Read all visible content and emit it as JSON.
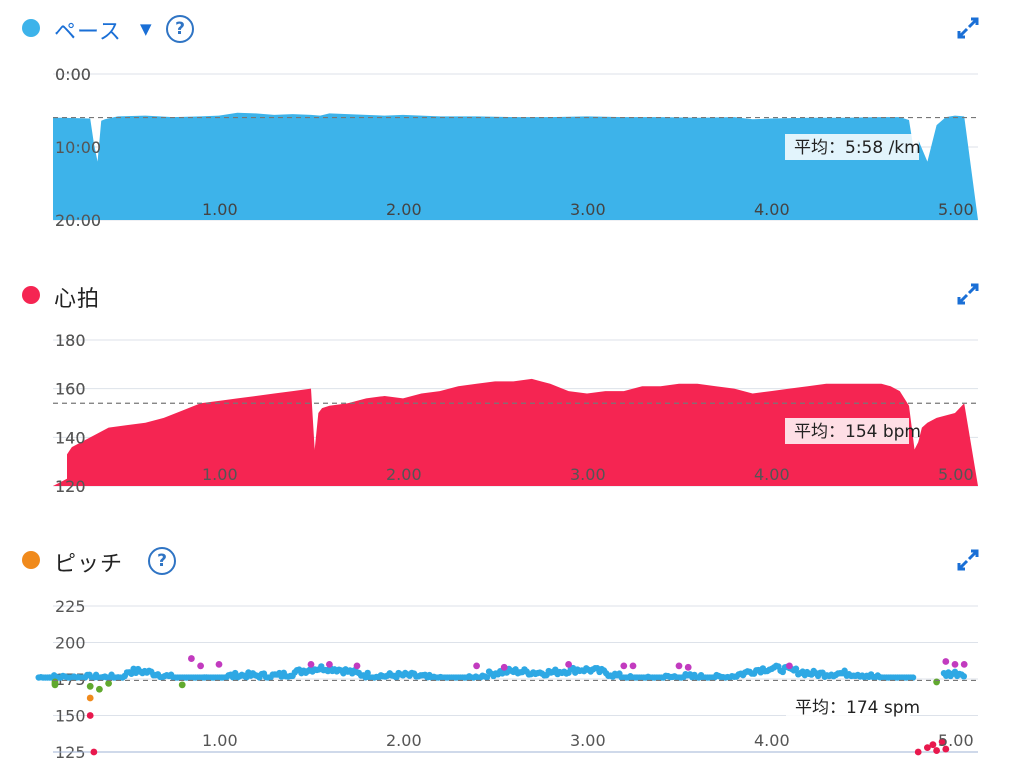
{
  "colors": {
    "pace": "#3db3ea",
    "heart": "#f52552",
    "pitch_legend": "#f08a1c",
    "pitch_blue": "#2ea8e4",
    "pitch_purple": "#c23bbf",
    "pitch_green": "#61a92e",
    "pitch_red": "#e8184d",
    "help": "#2f74c4"
  },
  "pace": {
    "title": "ペース",
    "dropdown_icon": "triangle-down-icon",
    "help_label": "?",
    "avg_label": "平均：5:58 /km",
    "expand_icon": "expand-icon"
  },
  "heart": {
    "title": "心拍",
    "avg_label": "平均：154 bpm",
    "expand_icon": "expand-icon"
  },
  "pitch": {
    "title": "ピッチ",
    "help_label": "?",
    "avg_label": "平均：174 spm",
    "expand_icon": "expand-icon"
  },
  "chart_data": [
    {
      "type": "area",
      "title": "ペース",
      "y_ticks": [
        "0:00",
        "10:00",
        "20:00"
      ],
      "x_ticks": [
        "1.00",
        "2.00",
        "3.00",
        "4.00",
        "5.00"
      ],
      "ylim_min_per_km": [
        0,
        20
      ],
      "y_inverted": true,
      "avg": 5.97,
      "x": [
        0.0,
        0.15,
        0.3,
        0.32,
        0.34,
        0.36,
        0.38,
        0.45,
        0.6,
        0.75,
        0.9,
        1.0,
        1.1,
        1.2,
        1.3,
        1.4,
        1.5,
        1.55,
        1.6,
        1.7,
        1.8,
        1.9,
        2.0,
        2.2,
        2.4,
        2.6,
        2.8,
        3.0,
        3.2,
        3.4,
        3.6,
        3.8,
        3.9,
        4.0,
        4.2,
        4.4,
        4.6,
        4.7,
        4.75,
        4.78,
        4.8,
        4.85,
        4.9,
        4.95,
        5.0,
        5.05
      ],
      "series": [
        {
          "name": "ペース",
          "values": [
            6.0,
            6.0,
            6.1,
            9.5,
            12.0,
            6.4,
            6.2,
            5.8,
            5.7,
            5.9,
            5.8,
            5.7,
            5.3,
            5.4,
            5.6,
            5.5,
            5.6,
            5.7,
            5.4,
            5.5,
            5.6,
            5.7,
            5.6,
            5.8,
            5.8,
            5.9,
            5.9,
            5.8,
            5.9,
            5.9,
            6.0,
            5.9,
            6.2,
            6.1,
            6.0,
            6.0,
            5.9,
            5.9,
            6.3,
            11.0,
            9.0,
            12.0,
            7.0,
            5.9,
            5.7,
            5.8
          ]
        }
      ]
    },
    {
      "type": "area",
      "title": "心拍",
      "y_ticks": [
        "120",
        "140",
        "160",
        "180"
      ],
      "x_ticks": [
        "1.00",
        "2.00",
        "3.00",
        "4.00",
        "5.00"
      ],
      "ylim": [
        120,
        180
      ],
      "avg": 154,
      "x": [
        0.0,
        0.05,
        0.1,
        0.15,
        0.2,
        0.25,
        0.3,
        0.35,
        0.4,
        0.5,
        0.6,
        0.7,
        0.8,
        0.9,
        1.0,
        1.1,
        1.2,
        1.3,
        1.4,
        1.5,
        1.52,
        1.54,
        1.56,
        1.6,
        1.7,
        1.8,
        1.9,
        2.0,
        2.1,
        2.2,
        2.3,
        2.4,
        2.5,
        2.6,
        2.7,
        2.8,
        2.9,
        3.0,
        3.1,
        3.2,
        3.3,
        3.4,
        3.5,
        3.6,
        3.7,
        3.8,
        3.9,
        4.0,
        4.1,
        4.2,
        4.3,
        4.4,
        4.5,
        4.6,
        4.65,
        4.7,
        4.75,
        4.78,
        4.8,
        4.82,
        4.85,
        4.9,
        5.0,
        5.05
      ],
      "series": [
        {
          "name": "心拍",
          "values": [
            123,
            127,
            130,
            133,
            136,
            138,
            140,
            142,
            144,
            145,
            146,
            148,
            151,
            154,
            155,
            156,
            157,
            158,
            159,
            160,
            135,
            150,
            152,
            153,
            154,
            156,
            157,
            156,
            158,
            159,
            161,
            162,
            163,
            163,
            164,
            162,
            159,
            158,
            159,
            159,
            161,
            161,
            162,
            162,
            161,
            160,
            158,
            159,
            160,
            161,
            162,
            162,
            162,
            162,
            161,
            159,
            153,
            135,
            138,
            144,
            146,
            148,
            150,
            154
          ]
        }
      ]
    },
    {
      "type": "scatter",
      "title": "ピッチ",
      "y_ticks": [
        "125",
        "150",
        "175",
        "200",
        "225"
      ],
      "x_ticks": [
        "1.00",
        "2.00",
        "3.00",
        "4.00",
        "5.00"
      ],
      "ylim": [
        125,
        225
      ],
      "avg": 174,
      "series": [
        {
          "name": "blue",
          "values_range": [
            176,
            184
          ]
        },
        {
          "name": "purple",
          "points": [
            [
              0.85,
              189
            ],
            [
              0.9,
              184
            ],
            [
              1.0,
              185
            ],
            [
              1.5,
              185
            ],
            [
              1.6,
              185
            ],
            [
              1.75,
              184
            ],
            [
              2.4,
              184
            ],
            [
              2.55,
              183
            ],
            [
              2.9,
              185
            ],
            [
              3.2,
              184
            ],
            [
              3.25,
              184
            ],
            [
              3.5,
              184
            ],
            [
              3.55,
              183
            ],
            [
              4.1,
              184
            ],
            [
              4.95,
              187
            ],
            [
              5.0,
              185
            ],
            [
              5.05,
              185
            ]
          ]
        },
        {
          "name": "green",
          "points": [
            [
              0.0,
              171
            ],
            [
              0.05,
              172
            ],
            [
              0.1,
              173
            ],
            [
              0.3,
              170
            ],
            [
              0.35,
              168
            ],
            [
              0.4,
              172
            ],
            [
              0.8,
              171
            ],
            [
              4.9,
              173
            ]
          ]
        },
        {
          "name": "orange",
          "points": [
            [
              0.3,
              162
            ]
          ]
        },
        {
          "name": "red",
          "points": [
            [
              0.3,
              150
            ],
            [
              0.32,
              125
            ],
            [
              4.8,
              125
            ],
            [
              4.85,
              128
            ],
            [
              4.88,
              130
            ],
            [
              4.9,
              126
            ],
            [
              4.93,
              132
            ],
            [
              4.95,
              127
            ]
          ]
        }
      ]
    }
  ]
}
